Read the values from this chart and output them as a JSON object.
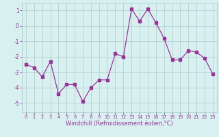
{
  "x": [
    0,
    1,
    2,
    3,
    4,
    5,
    6,
    7,
    8,
    9,
    10,
    11,
    12,
    13,
    14,
    15,
    16,
    17,
    18,
    19,
    20,
    21,
    22,
    23
  ],
  "y": [
    -2.5,
    -2.7,
    -3.3,
    -2.3,
    -4.4,
    -3.8,
    -3.8,
    -4.9,
    -4.0,
    -3.5,
    -3.5,
    -1.8,
    -2.0,
    1.1,
    0.3,
    1.1,
    0.2,
    -0.8,
    -2.2,
    -2.2,
    -1.6,
    -1.7,
    -2.1,
    -3.1
  ],
  "line_color": "#993399",
  "marker": "s",
  "markersize": 2.2,
  "linewidth": 0.9,
  "xlabel": "Windchill (Refroidissement éolien,°C)",
  "xlabel_fontsize": 6.0,
  "xtick_labels": [
    "0",
    "1",
    "2",
    "3",
    "4",
    "5",
    "6",
    "7",
    "8",
    "9",
    "10",
    "11",
    "12",
    "13",
    "14",
    "15",
    "16",
    "17",
    "18",
    "19",
    "20",
    "21",
    "22",
    "23"
  ],
  "ytick_values": [
    1,
    0,
    -1,
    -2,
    -3,
    -4,
    -5
  ],
  "ylim": [
    -5.6,
    1.5
  ],
  "xlim": [
    -0.5,
    23.5
  ],
  "bg_color": "#d8f0f0",
  "grid_color": "#aacccc",
  "tick_color": "#993399",
  "label_color": "#993399",
  "xtick_fontsize": 4.8,
  "ytick_fontsize": 5.5
}
